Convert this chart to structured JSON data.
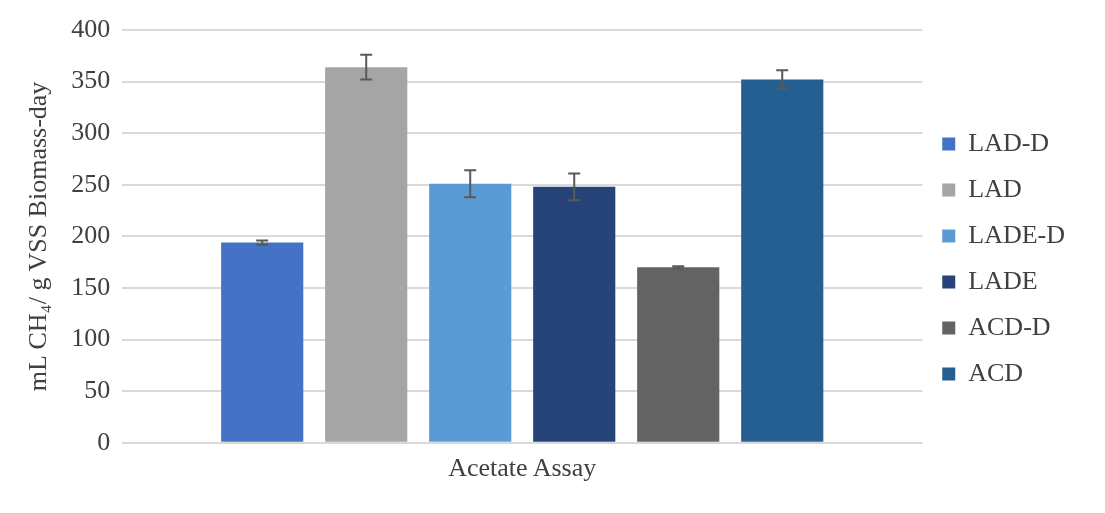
{
  "chart_data": {
    "type": "bar",
    "ylabel": "mL CH₄/ g VSS Biomass-day",
    "categories": [
      "Acetate Assay"
    ],
    "series": [
      {
        "name": "LAD-D",
        "color": "#4472c4",
        "values": [
          194
        ],
        "errors": [
          2
        ]
      },
      {
        "name": "LAD",
        "color": "#a5a5a5",
        "values": [
          364
        ],
        "errors": [
          12
        ]
      },
      {
        "name": "LADE-D",
        "color": "#5b9bd5",
        "values": [
          251
        ],
        "errors": [
          13
        ]
      },
      {
        "name": "LADE",
        "color": "#264478",
        "values": [
          248
        ],
        "errors": [
          13
        ]
      },
      {
        "name": "ACD-D",
        "color": "#636363",
        "values": [
          170
        ],
        "errors": [
          1
        ]
      },
      {
        "name": "ACD",
        "color": "#255e91",
        "values": [
          352
        ],
        "errors": [
          9
        ]
      }
    ],
    "ylim": [
      0,
      400
    ],
    "yticks": [
      0,
      50,
      100,
      150,
      200,
      250,
      300,
      350,
      400
    ],
    "grid": "y",
    "legend": "right"
  }
}
